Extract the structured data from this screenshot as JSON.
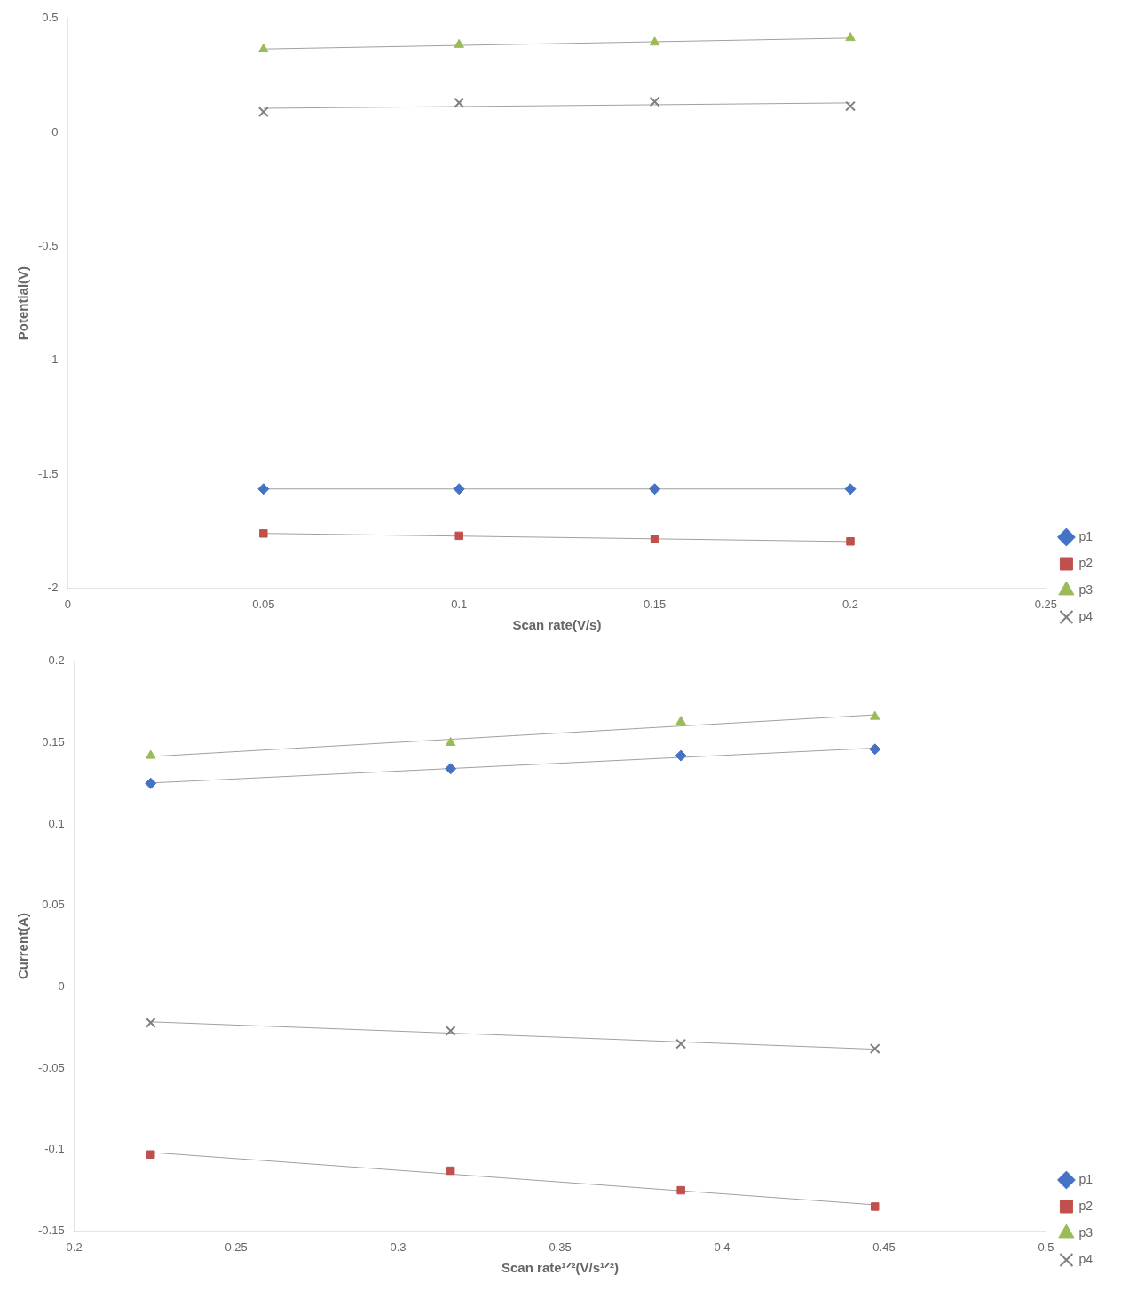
{
  "chart_data": [
    {
      "type": "scatter",
      "xlabel": "Scan rate(V/s)",
      "ylabel": "Potential(V)",
      "xlim": [
        0,
        0.25
      ],
      "xticks": [
        0,
        0.05,
        0.1,
        0.15,
        0.2,
        0.25
      ],
      "ylim": [
        -2,
        0.5
      ],
      "yticks": [
        -2,
        -1.5,
        -1,
        -0.5,
        0,
        0.5
      ],
      "grid": false,
      "legend": "lower right",
      "series": [
        {
          "name": "p1",
          "color": "#4472C4",
          "marker": "diamond",
          "x": [
            0.05,
            0.1,
            0.15,
            0.2
          ],
          "values": [
            -1.565,
            -1.565,
            -1.565,
            -1.565
          ],
          "trend_line": {
            "color": "#A0A0A0",
            "x": [
              0.05,
              0.2
            ],
            "values": [
              -1.565,
              -1.565
            ]
          }
        },
        {
          "name": "p2",
          "color": "#C0504D",
          "marker": "square",
          "x": [
            0.05,
            0.1,
            0.15,
            0.2
          ],
          "values": [
            -1.76,
            -1.77,
            -1.785,
            -1.795
          ],
          "trend_line": {
            "color": "#A0A0A0",
            "x": [
              0.05,
              0.2
            ],
            "values": [
              -1.7595,
              -1.7955
            ]
          }
        },
        {
          "name": "p3",
          "color": "#9BBB59",
          "marker": "triangle",
          "x": [
            0.05,
            0.1,
            0.15,
            0.2
          ],
          "values": [
            0.365,
            0.385,
            0.395,
            0.415
          ],
          "trend_line": {
            "color": "#A0A0A0",
            "x": [
              0.05,
              0.2
            ],
            "values": [
              0.366,
              0.414
            ]
          }
        },
        {
          "name": "p4",
          "color": "#808080",
          "marker": "x",
          "x": [
            0.05,
            0.1,
            0.15,
            0.2
          ],
          "values": [
            0.09,
            0.13,
            0.135,
            0.115
          ],
          "trend_line": {
            "color": "#A0A0A0",
            "x": [
              0.05,
              0.2
            ],
            "values": [
              0.1055,
              0.1295
            ]
          }
        }
      ]
    },
    {
      "type": "scatter",
      "xlabel": "Scan rate¹ᐟ²(V/s¹ᐟ²)",
      "ylabel": "Current(A)",
      "xlim": [
        0.2,
        0.5
      ],
      "xticks": [
        0.2,
        0.25,
        0.3,
        0.35,
        0.4,
        0.45,
        0.5
      ],
      "ylim": [
        -0.15,
        0.2
      ],
      "yticks": [
        -0.15,
        -0.1,
        -0.05,
        0,
        0.05,
        0.1,
        0.15,
        0.2
      ],
      "grid": false,
      "legend": "lower right",
      "series": [
        {
          "name": "p1",
          "color": "#4472C4",
          "marker": "diamond",
          "x": [
            0.2236,
            0.3162,
            0.3873,
            0.4472
          ],
          "values": [
            0.125,
            0.134,
            0.142,
            0.146
          ],
          "trend_line": {
            "color": "#A0A0A0",
            "x": [
              0.2236,
              0.4472
            ],
            "values": [
              0.12521,
              0.14672
            ]
          }
        },
        {
          "name": "p2",
          "color": "#C0504D",
          "marker": "square",
          "x": [
            0.2236,
            0.3162,
            0.3873,
            0.4472
          ],
          "values": [
            -0.103,
            -0.113,
            -0.125,
            -0.135
          ],
          "trend_line": {
            "color": "#A0A0A0",
            "x": [
              0.2236,
              0.4472
            ],
            "values": [
              -0.10172,
              -0.13393
            ]
          }
        },
        {
          "name": "p3",
          "color": "#9BBB59",
          "marker": "triangle",
          "x": [
            0.2236,
            0.3162,
            0.3873,
            0.4472
          ],
          "values": [
            0.142,
            0.15,
            0.163,
            0.166
          ],
          "trend_line": {
            "color": "#A0A0A0",
            "x": [
              0.2236,
              0.4472
            ],
            "values": [
              0.1415,
              0.16713
            ]
          }
        },
        {
          "name": "p4",
          "color": "#808080",
          "marker": "x",
          "x": [
            0.2236,
            0.3162,
            0.3873,
            0.4472
          ],
          "values": [
            -0.022,
            -0.027,
            -0.035,
            -0.038
          ],
          "trend_line": {
            "color": "#A0A0A0",
            "x": [
              0.2236,
              0.4472
            ],
            "values": [
              -0.02148,
              -0.03829
            ]
          }
        }
      ]
    }
  ]
}
